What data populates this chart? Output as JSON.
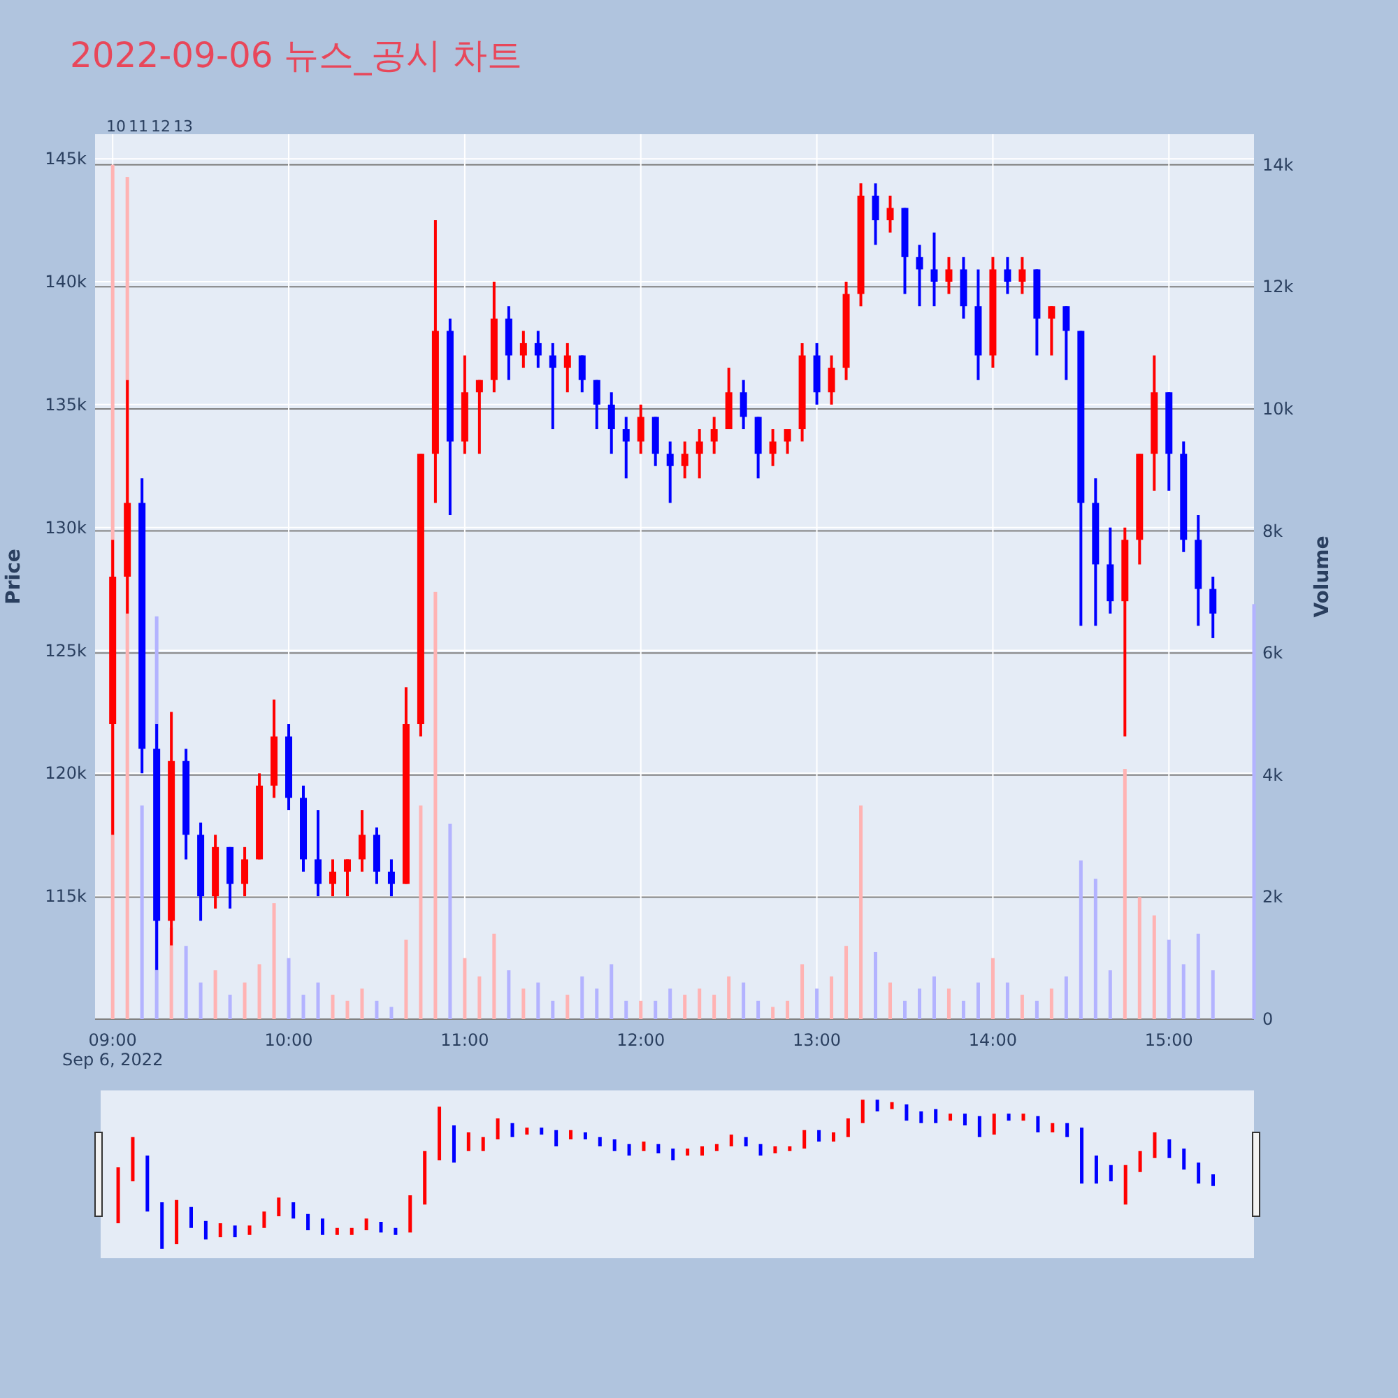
{
  "chart_data": {
    "type": "candlestick",
    "title": "2022-09-06 뉴스_공시 차트",
    "ylabel": "Price",
    "y2label": "Volume",
    "x": [
      "2022-09-06T09:00",
      "2022-09-06T09:05",
      "2022-09-06T09:10",
      "2022-09-06T09:15",
      "2022-09-06T09:20",
      "2022-09-06T09:25",
      "2022-09-06T09:30",
      "2022-09-06T09:35",
      "2022-09-06T09:40",
      "2022-09-06T09:45",
      "2022-09-06T09:50",
      "2022-09-06T09:55",
      "2022-09-06T10:00",
      "2022-09-06T10:05",
      "2022-09-06T10:10",
      "2022-09-06T10:15",
      "2022-09-06T10:20",
      "2022-09-06T10:25",
      "2022-09-06T10:30",
      "2022-09-06T10:35",
      "2022-09-06T10:40",
      "2022-09-06T10:45",
      "2022-09-06T10:50",
      "2022-09-06T10:55",
      "2022-09-06T11:00",
      "2022-09-06T11:05",
      "2022-09-06T11:10",
      "2022-09-06T11:15",
      "2022-09-06T11:20",
      "2022-09-06T11:25",
      "2022-09-06T11:30",
      "2022-09-06T11:35",
      "2022-09-06T11:40",
      "2022-09-06T11:45",
      "2022-09-06T11:50",
      "2022-09-06T11:55",
      "2022-09-06T12:00",
      "2022-09-06T12:05",
      "2022-09-06T12:10",
      "2022-09-06T12:15",
      "2022-09-06T12:20",
      "2022-09-06T12:25",
      "2022-09-06T12:30",
      "2022-09-06T12:35",
      "2022-09-06T12:40",
      "2022-09-06T12:45",
      "2022-09-06T12:50",
      "2022-09-06T12:55",
      "2022-09-06T13:00",
      "2022-09-06T13:05",
      "2022-09-06T13:10",
      "2022-09-06T13:15",
      "2022-09-06T13:20",
      "2022-09-06T13:25",
      "2022-09-06T13:30",
      "2022-09-06T13:35",
      "2022-09-06T13:40",
      "2022-09-06T13:45",
      "2022-09-06T13:50",
      "2022-09-06T13:55",
      "2022-09-06T14:00",
      "2022-09-06T14:05",
      "2022-09-06T14:10",
      "2022-09-06T14:15",
      "2022-09-06T14:20",
      "2022-09-06T14:25",
      "2022-09-06T14:30",
      "2022-09-06T14:35",
      "2022-09-06T14:40",
      "2022-09-06T14:45",
      "2022-09-06T14:50",
      "2022-09-06T14:55",
      "2022-09-06T15:00",
      "2022-09-06T15:05",
      "2022-09-06T15:10",
      "2022-09-06T15:15"
    ],
    "ohlc": [
      [
        122000,
        129500,
        117500,
        128000
      ],
      [
        128000,
        136000,
        126500,
        131000
      ],
      [
        131000,
        132000,
        120000,
        121000
      ],
      [
        121000,
        122000,
        112000,
        114000
      ],
      [
        114000,
        122500,
        113000,
        120500
      ],
      [
        120500,
        121000,
        116500,
        117500
      ],
      [
        117500,
        118000,
        114000,
        115000
      ],
      [
        115000,
        117500,
        114500,
        117000
      ],
      [
        117000,
        117000,
        114500,
        115500
      ],
      [
        115500,
        117000,
        115000,
        116500
      ],
      [
        116500,
        120000,
        116500,
        119500
      ],
      [
        119500,
        123000,
        119000,
        121500
      ],
      [
        121500,
        122000,
        118500,
        119000
      ],
      [
        119000,
        119500,
        116000,
        116500
      ],
      [
        116500,
        118500,
        115000,
        115500
      ],
      [
        115500,
        116500,
        115000,
        116000
      ],
      [
        116000,
        116500,
        115000,
        116500
      ],
      [
        116500,
        118500,
        116000,
        117500
      ],
      [
        117500,
        117800,
        115500,
        116000
      ],
      [
        116000,
        116500,
        115000,
        115500
      ],
      [
        115500,
        123500,
        115500,
        122000
      ],
      [
        122000,
        133000,
        121500,
        133000
      ],
      [
        133000,
        142500,
        131000,
        138000
      ],
      [
        138000,
        138500,
        130500,
        133500
      ],
      [
        133500,
        137000,
        133000,
        135500
      ],
      [
        135500,
        136000,
        133000,
        136000
      ],
      [
        136000,
        140000,
        135500,
        138500
      ],
      [
        138500,
        139000,
        136000,
        137000
      ],
      [
        137000,
        138000,
        136500,
        137500
      ],
      [
        137500,
        138000,
        136500,
        137000
      ],
      [
        137000,
        137500,
        134000,
        136500
      ],
      [
        136500,
        137500,
        135500,
        137000
      ],
      [
        137000,
        137000,
        135500,
        136000
      ],
      [
        136000,
        136000,
        134000,
        135000
      ],
      [
        135000,
        135500,
        133000,
        134000
      ],
      [
        134000,
        134500,
        132000,
        133500
      ],
      [
        133500,
        135000,
        133000,
        134500
      ],
      [
        134500,
        134500,
        132500,
        133000
      ],
      [
        133000,
        133500,
        131000,
        132500
      ],
      [
        132500,
        133500,
        132000,
        133000
      ],
      [
        133000,
        134000,
        132000,
        133500
      ],
      [
        133500,
        134500,
        133000,
        134000
      ],
      [
        134000,
        136500,
        134000,
        135500
      ],
      [
        135500,
        136000,
        134000,
        134500
      ],
      [
        134500,
        134500,
        132000,
        133000
      ],
      [
        133000,
        134000,
        132500,
        133500
      ],
      [
        133500,
        134000,
        133000,
        134000
      ],
      [
        134000,
        137500,
        133500,
        137000
      ],
      [
        137000,
        137500,
        135000,
        135500
      ],
      [
        135500,
        137000,
        135000,
        136500
      ],
      [
        136500,
        140000,
        136000,
        139500
      ],
      [
        139500,
        144000,
        139000,
        143500
      ],
      [
        143500,
        144000,
        141500,
        142500
      ],
      [
        142500,
        143500,
        142000,
        143000
      ],
      [
        143000,
        143000,
        139500,
        141000
      ],
      [
        141000,
        141500,
        139000,
        140500
      ],
      [
        140500,
        142000,
        139000,
        140000
      ],
      [
        140000,
        141000,
        139500,
        140500
      ],
      [
        140500,
        141000,
        138500,
        139000
      ],
      [
        139000,
        140500,
        136000,
        137000
      ],
      [
        137000,
        141000,
        136500,
        140500
      ],
      [
        140500,
        141000,
        139500,
        140000
      ],
      [
        140000,
        141000,
        139500,
        140500
      ],
      [
        140500,
        140500,
        137000,
        138500
      ],
      [
        138500,
        139000,
        137000,
        139000
      ],
      [
        139000,
        139000,
        136000,
        138000
      ],
      [
        138000,
        138000,
        126000,
        131000
      ],
      [
        131000,
        132000,
        126000,
        128500
      ],
      [
        128500,
        130000,
        126500,
        127000
      ],
      [
        127000,
        130000,
        121500,
        129500
      ],
      [
        129500,
        133000,
        128500,
        133000
      ],
      [
        133000,
        137000,
        131500,
        135500
      ],
      [
        135500,
        135500,
        131500,
        133000
      ],
      [
        133000,
        133500,
        129000,
        129500
      ],
      [
        129500,
        130500,
        126000,
        127500
      ],
      [
        127500,
        128000,
        125500,
        126500
      ]
    ],
    "colors": [
      "#ff0000",
      "#ff0000",
      "#0000ff",
      "#0000ff",
      "#ff0000",
      "#0000ff",
      "#0000ff",
      "#ff0000",
      "#0000ff",
      "#ff0000",
      "#ff0000",
      "#ff0000",
      "#0000ff",
      "#0000ff",
      "#0000ff",
      "#ff0000",
      "#ff0000",
      "#ff0000",
      "#0000ff",
      "#0000ff",
      "#ff0000",
      "#ff0000",
      "#ff0000",
      "#0000ff",
      "#ff0000",
      "#ff0000",
      "#ff0000",
      "#0000ff",
      "#ff0000",
      "#0000ff",
      "#0000ff",
      "#ff0000",
      "#0000ff",
      "#0000ff",
      "#0000ff",
      "#0000ff",
      "#ff0000",
      "#0000ff",
      "#0000ff",
      "#ff0000",
      "#ff0000",
      "#ff0000",
      "#ff0000",
      "#0000ff",
      "#0000ff",
      "#ff0000",
      "#ff0000",
      "#ff0000",
      "#0000ff",
      "#ff0000",
      "#ff0000",
      "#ff0000",
      "#0000ff",
      "#ff0000",
      "#0000ff",
      "#0000ff",
      "#0000ff",
      "#ff0000",
      "#0000ff",
      "#0000ff",
      "#ff0000",
      "#0000ff",
      "#ff0000",
      "#0000ff",
      "#ff0000",
      "#0000ff",
      "#0000ff",
      "#0000ff",
      "#0000ff",
      "#ff0000",
      "#ff0000",
      "#ff0000",
      "#0000ff",
      "#0000ff",
      "#0000ff",
      "#0000ff"
    ],
    "series": [
      {
        "type": "bar",
        "axis": "y2",
        "x": [
          "2022-09-06T09:00",
          "2022-09-06T09:05",
          "2022-09-06T09:10",
          "2022-09-06T09:15",
          "2022-09-06T09:20",
          "2022-09-06T09:25",
          "2022-09-06T09:30",
          "2022-09-06T09:35",
          "2022-09-06T09:40",
          "2022-09-06T09:45",
          "2022-09-06T09:50",
          "2022-09-06T09:55",
          "2022-09-06T10:00",
          "2022-09-06T10:05",
          "2022-09-06T10:10",
          "2022-09-06T10:15",
          "2022-09-06T10:20",
          "2022-09-06T10:25",
          "2022-09-06T10:30",
          "2022-09-06T10:35",
          "2022-09-06T10:40",
          "2022-09-06T10:45",
          "2022-09-06T10:50",
          "2022-09-06T10:55",
          "2022-09-06T11:00",
          "2022-09-06T11:05",
          "2022-09-06T11:10",
          "2022-09-06T11:15",
          "2022-09-06T11:20",
          "2022-09-06T11:25",
          "2022-09-06T11:30",
          "2022-09-06T11:35",
          "2022-09-06T11:40",
          "2022-09-06T11:45",
          "2022-09-06T11:50",
          "2022-09-06T11:55",
          "2022-09-06T12:00",
          "2022-09-06T12:05",
          "2022-09-06T12:10",
          "2022-09-06T12:15",
          "2022-09-06T12:20",
          "2022-09-06T12:25",
          "2022-09-06T12:30",
          "2022-09-06T12:35",
          "2022-09-06T12:40",
          "2022-09-06T12:45",
          "2022-09-06T12:50",
          "2022-09-06T12:55",
          "2022-09-06T13:00",
          "2022-09-06T13:05",
          "2022-09-06T13:10",
          "2022-09-06T13:15",
          "2022-09-06T13:20",
          "2022-09-06T13:25",
          "2022-09-06T13:30",
          "2022-09-06T13:35",
          "2022-09-06T13:40",
          "2022-09-06T13:45",
          "2022-09-06T13:50",
          "2022-09-06T13:55",
          "2022-09-06T14:00",
          "2022-09-06T14:05",
          "2022-09-06T14:10",
          "2022-09-06T14:15",
          "2022-09-06T14:20",
          "2022-09-06T14:25",
          "2022-09-06T14:30",
          "2022-09-06T14:35",
          "2022-09-06T14:40",
          "2022-09-06T14:45",
          "2022-09-06T14:50",
          "2022-09-06T14:55",
          "2022-09-06T15:00",
          "2022-09-06T15:05",
          "2022-09-06T15:10",
          "2022-09-06T15:15",
          "2022-09-06T15:29"
        ],
        "values": [
          14000,
          13800,
          3500,
          6600,
          1500,
          1200,
          600,
          800,
          400,
          600,
          900,
          1900,
          1000,
          400,
          600,
          400,
          300,
          500,
          300,
          200,
          1300,
          3500,
          7000,
          3200,
          1000,
          700,
          1400,
          800,
          500,
          600,
          300,
          400,
          700,
          500,
          900,
          300,
          300,
          300,
          500,
          400,
          500,
          400,
          700,
          600,
          300,
          200,
          300,
          900,
          500,
          700,
          1200,
          3500,
          1100,
          600,
          300,
          500,
          700,
          500,
          300,
          600,
          1000,
          600,
          400,
          300,
          500,
          700,
          2600,
          2300,
          800,
          4100,
          2000,
          1700,
          1300,
          900,
          1400,
          800,
          6800
        ],
        "colors": [
          "#ffb3b3",
          "#ffb3b3",
          "#b3b3ff",
          "#b3b3ff",
          "#ffb3b3",
          "#b3b3ff",
          "#b3b3ff",
          "#ffb3b3",
          "#b3b3ff",
          "#ffb3b3",
          "#ffb3b3",
          "#ffb3b3",
          "#b3b3ff",
          "#b3b3ff",
          "#b3b3ff",
          "#ffb3b3",
          "#ffb3b3",
          "#ffb3b3",
          "#b3b3ff",
          "#b3b3ff",
          "#ffb3b3",
          "#ffb3b3",
          "#ffb3b3",
          "#b3b3ff",
          "#ffb3b3",
          "#ffb3b3",
          "#ffb3b3",
          "#b3b3ff",
          "#ffb3b3",
          "#b3b3ff",
          "#b3b3ff",
          "#ffb3b3",
          "#b3b3ff",
          "#b3b3ff",
          "#b3b3ff",
          "#b3b3ff",
          "#ffb3b3",
          "#b3b3ff",
          "#b3b3ff",
          "#ffb3b3",
          "#ffb3b3",
          "#ffb3b3",
          "#ffb3b3",
          "#b3b3ff",
          "#b3b3ff",
          "#ffb3b3",
          "#ffb3b3",
          "#ffb3b3",
          "#b3b3ff",
          "#ffb3b3",
          "#ffb3b3",
          "#ffb3b3",
          "#b3b3ff",
          "#ffb3b3",
          "#b3b3ff",
          "#b3b3ff",
          "#b3b3ff",
          "#ffb3b3",
          "#b3b3ff",
          "#b3b3ff",
          "#ffb3b3",
          "#b3b3ff",
          "#ffb3b3",
          "#b3b3ff",
          "#ffb3b3",
          "#b3b3ff",
          "#b3b3ff",
          "#b3b3ff",
          "#b3b3ff",
          "#ffb3b3",
          "#ffb3b3",
          "#ffb3b3",
          "#b3b3ff",
          "#b3b3ff",
          "#b3b3ff",
          "#b3b3ff",
          "#b3b3ff"
        ]
      }
    ],
    "xlim": [
      "2022-09-06T08:54",
      "2022-09-06T15:29"
    ],
    "xticks": [
      {
        "value": "2022-09-06T09:00",
        "label": "09:00\nSep 6, 2022"
      },
      {
        "value": "2022-09-06T10:00",
        "label": "10:00"
      },
      {
        "value": "2022-09-06T11:00",
        "label": "11:00"
      },
      {
        "value": "2022-09-06T12:00",
        "label": "12:00"
      },
      {
        "value": "2022-09-06T13:00",
        "label": "13:00"
      },
      {
        "value": "2022-09-06T14:00",
        "label": "14:00"
      },
      {
        "value": "2022-09-06T15:00",
        "label": "15:00"
      }
    ],
    "ylim": [
      110000,
      146000
    ],
    "yticks": [
      {
        "value": 115000,
        "label": "115k"
      },
      {
        "value": 120000,
        "label": "120k"
      },
      {
        "value": 125000,
        "label": "125k"
      },
      {
        "value": 130000,
        "label": "130k"
      },
      {
        "value": 135000,
        "label": "135k"
      },
      {
        "value": 140000,
        "label": "140k"
      },
      {
        "value": 145000,
        "label": "145k"
      }
    ],
    "y2lim": [
      0,
      14500
    ],
    "y2ticks": [
      0,
      {
        "value": 2000,
        "label": "2k"
      },
      {
        "value": 4000,
        "label": "4k"
      },
      {
        "value": 6000,
        "label": "6k"
      },
      {
        "value": 8000,
        "label": "8k"
      },
      {
        "value": 10000,
        "label": "10k"
      },
      {
        "value": 12000,
        "label": "12k"
      },
      {
        "value": 14000,
        "label": "14k"
      }
    ],
    "annotations": [
      "10",
      "11",
      "12",
      "13"
    ],
    "grid": true
  }
}
